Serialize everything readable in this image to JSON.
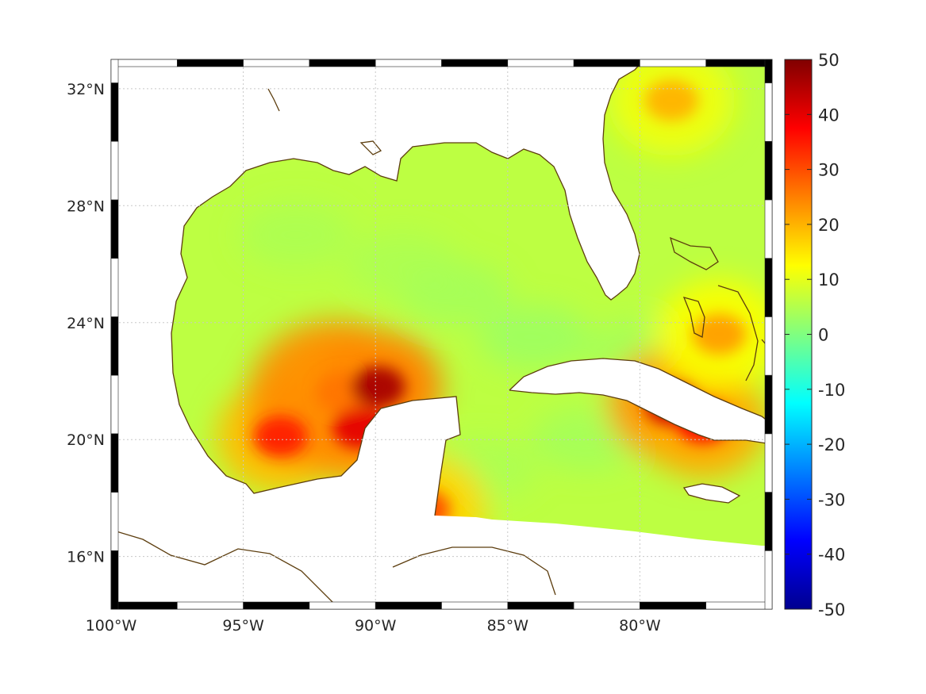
{
  "map": {
    "lon_range": [
      -100,
      -75
    ],
    "lat_range": [
      14.2,
      33
    ],
    "x_ticks": [
      {
        "value": -100,
        "label": "100°W"
      },
      {
        "value": -95,
        "label": "95°W"
      },
      {
        "value": -90,
        "label": "90°W"
      },
      {
        "value": -85,
        "label": "85°W"
      },
      {
        "value": -80,
        "label": "80°W"
      }
    ],
    "y_ticks": [
      {
        "value": 32,
        "label": "32°N"
      },
      {
        "value": 28,
        "label": "28°N"
      },
      {
        "value": 24,
        "label": "24°N"
      },
      {
        "value": 20,
        "label": "20°N"
      },
      {
        "value": 16,
        "label": "16°N"
      }
    ],
    "grid": true,
    "coast_color": "#5c3d0e",
    "frame_style": "black-white-alternating-border"
  },
  "colorbar": {
    "colormap": "jet",
    "range": [
      -50,
      50
    ],
    "ticks": [
      {
        "value": 50,
        "label": "50"
      },
      {
        "value": 40,
        "label": "40"
      },
      {
        "value": 30,
        "label": "30"
      },
      {
        "value": 20,
        "label": "20"
      },
      {
        "value": 10,
        "label": "10"
      },
      {
        "value": 0,
        "label": "0"
      },
      {
        "value": -10,
        "label": "-10"
      },
      {
        "value": -20,
        "label": "-20"
      },
      {
        "value": -30,
        "label": "-30"
      },
      {
        "value": -40,
        "label": "-40"
      },
      {
        "value": -50,
        "label": "-50"
      }
    ]
  },
  "field": {
    "background_value": 6,
    "hotspots": [
      {
        "name": "bay-of-campeche",
        "lon": -91.2,
        "lat": 21.6,
        "value": 26
      },
      {
        "name": "yucatan-north",
        "lon": -89.9,
        "lat": 21.8,
        "value": 46
      },
      {
        "name": "campeche-west",
        "lon": -93.6,
        "lat": 20.1,
        "value": 35
      },
      {
        "name": "campeche-south",
        "lon": -90.6,
        "lat": 20.4,
        "value": 40
      },
      {
        "name": "cuba-south",
        "lon": -78.8,
        "lat": 21.2,
        "value": 42
      },
      {
        "name": "cuba-east",
        "lon": -77.6,
        "lat": 20.6,
        "value": 38
      },
      {
        "name": "bahamas",
        "lon": -77.0,
        "lat": 23.6,
        "value": 22
      },
      {
        "name": "georgia-offshore",
        "lon": -78.8,
        "lat": 31.6,
        "value": 20
      },
      {
        "name": "belize",
        "lon": -88.2,
        "lat": 17.6,
        "value": 30
      }
    ]
  }
}
